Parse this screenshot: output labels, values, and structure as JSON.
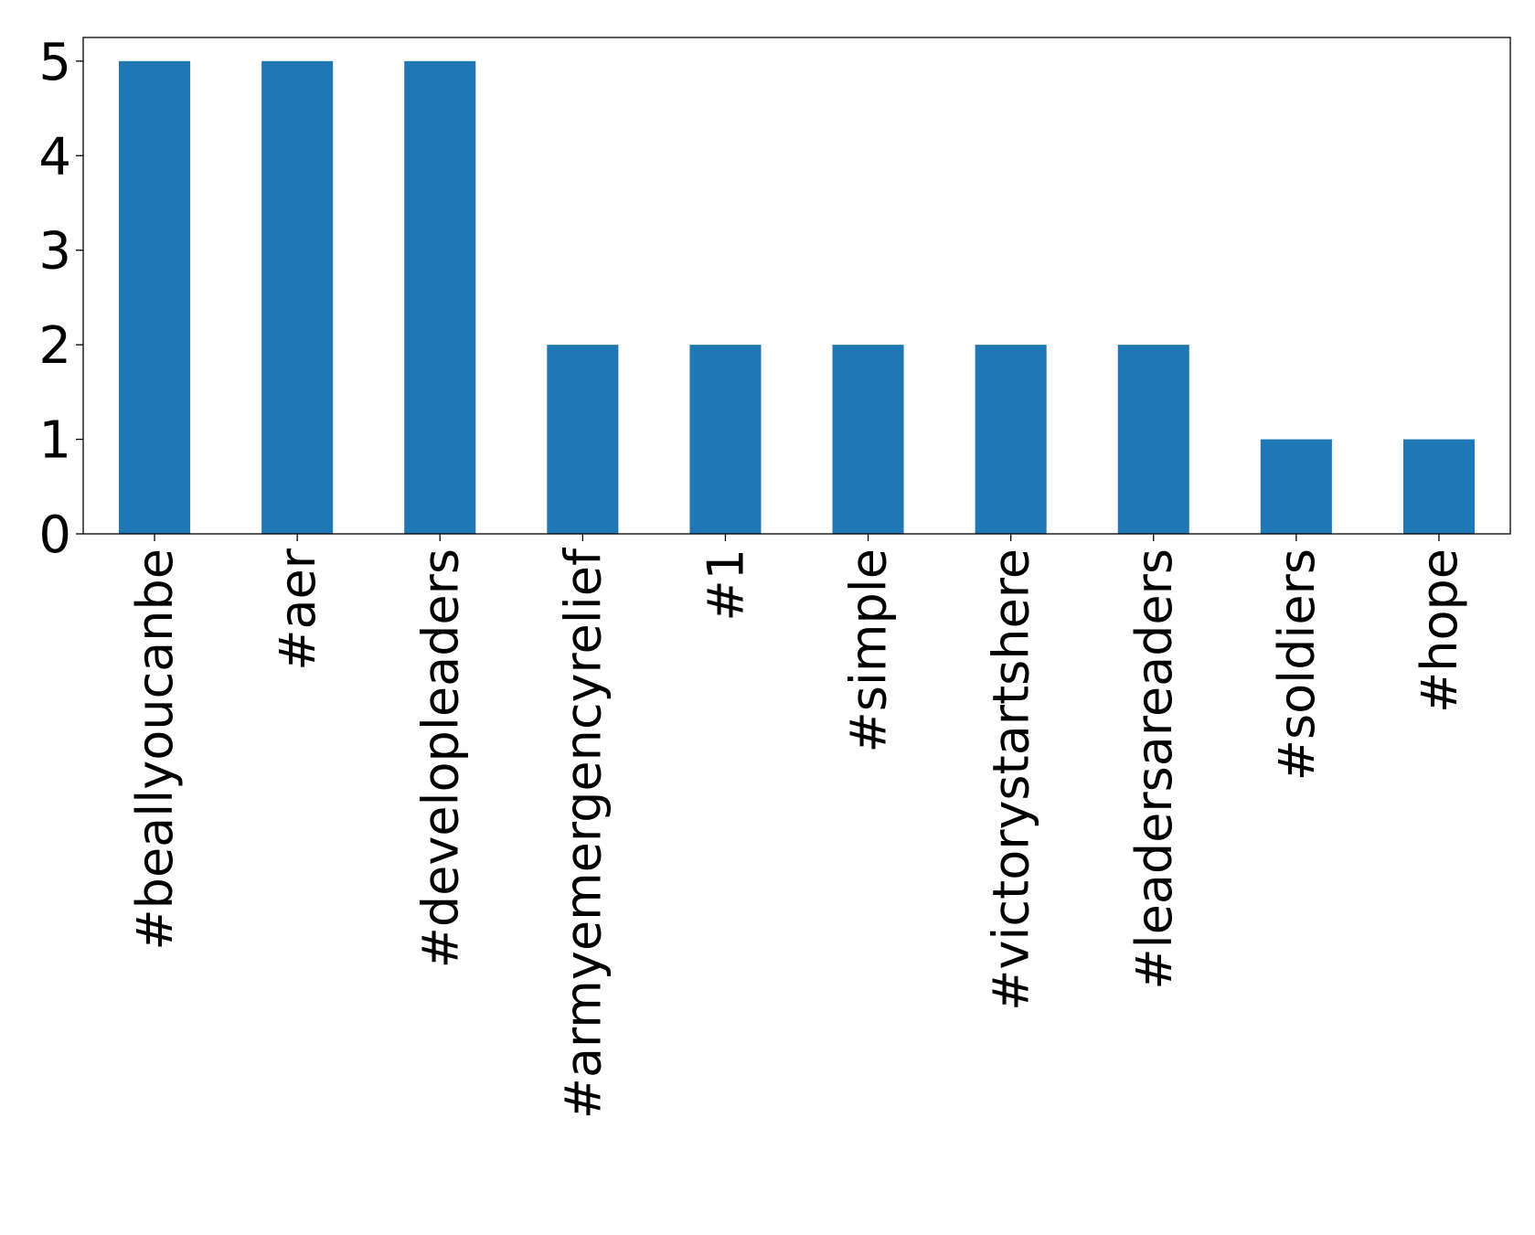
{
  "chart_data": {
    "type": "bar",
    "title": "",
    "xlabel": "",
    "ylabel": "",
    "categories": [
      "#beallyoucanbe",
      "#aer",
      "#developleaders",
      "#armyemergencyrelief",
      "#1",
      "#simple",
      "#victorystartshere",
      "#leadersareaders",
      "#soldiers",
      "#hope"
    ],
    "values": [
      5,
      5,
      5,
      2,
      2,
      2,
      2,
      2,
      1,
      1
    ],
    "ylim": [
      0,
      5.25
    ],
    "yticks": [
      0,
      1,
      2,
      3,
      4,
      5
    ],
    "grid": false,
    "legend": "none",
    "colors": {
      "bar": "#1f77b4",
      "axis": "#000000",
      "background": "#ffffff"
    }
  }
}
